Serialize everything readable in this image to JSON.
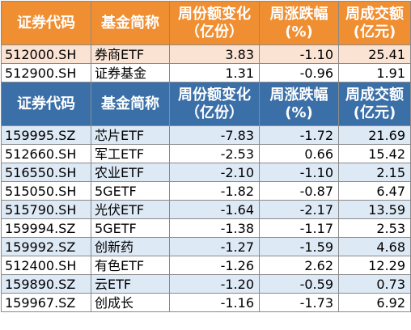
{
  "headers": {
    "code": "证券代码",
    "name": "基金简称",
    "share_change_line1": "周份额变化",
    "share_change_line2": "（亿份）",
    "pct_change_line1": "周涨跌幅",
    "pct_change_line2": "(%)",
    "volume_line1": "周成交额",
    "volume_line2": "(亿元)"
  },
  "top_rows": [
    {
      "code": "512000.SH",
      "name": "券商ETF",
      "share_change": "3.83",
      "pct_change": "-1.10",
      "volume": "25.41"
    },
    {
      "code": "512900.SH",
      "name": "证券基金",
      "share_change": "1.31",
      "pct_change": "-0.96",
      "volume": "1.91"
    }
  ],
  "bottom_rows": [
    {
      "code": "159995.SZ",
      "name": "芯片ETF",
      "share_change": "-7.83",
      "pct_change": "-1.72",
      "volume": "21.69"
    },
    {
      "code": "512660.SH",
      "name": "军工ETF",
      "share_change": "-2.53",
      "pct_change": "0.66",
      "volume": "15.42"
    },
    {
      "code": "516550.SH",
      "name": "农业ETF",
      "share_change": "-2.10",
      "pct_change": "-1.10",
      "volume": "2.15"
    },
    {
      "code": "515050.SH",
      "name": "5GETF",
      "share_change": "-1.82",
      "pct_change": "-0.87",
      "volume": "6.47"
    },
    {
      "code": "515790.SH",
      "name": "光伏ETF",
      "share_change": "-1.64",
      "pct_change": "-2.17",
      "volume": "13.59"
    },
    {
      "code": "159994.SZ",
      "name": "5GETF",
      "share_change": "-1.38",
      "pct_change": "-1.17",
      "volume": "2.53"
    },
    {
      "code": "159992.SZ",
      "name": "创新药",
      "share_change": "-1.27",
      "pct_change": "-1.59",
      "volume": "4.68"
    },
    {
      "code": "512400.SH",
      "name": "有色ETF",
      "share_change": "-1.26",
      "pct_change": "2.62",
      "volume": "12.29"
    },
    {
      "code": "159890.SZ",
      "name": "云ETF",
      "share_change": "-1.20",
      "pct_change": "-0.59",
      "volume": "0.73"
    },
    {
      "code": "159967.SZ",
      "name": "创成长",
      "share_change": "-1.16",
      "pct_change": "-1.73",
      "volume": "6.92"
    }
  ],
  "colors": {
    "orange_header": "#f08e32",
    "orange_row": "#fbe3d3",
    "blue_header": "#3b6fa8",
    "blue_row": "#dde9f5"
  }
}
